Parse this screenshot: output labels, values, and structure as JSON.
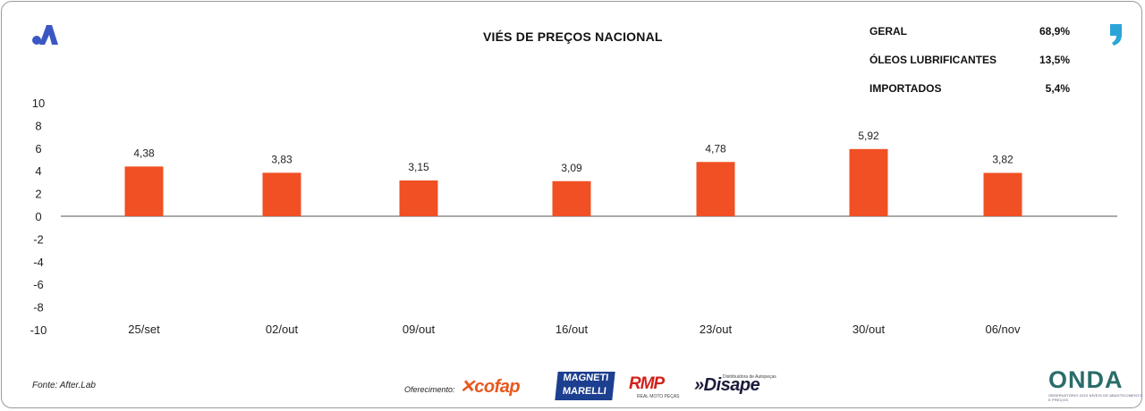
{
  "header": {
    "title": "VIÉS DE PREÇOS NACIONAL"
  },
  "icons": {
    "brand": "letter-a-logo-icon",
    "quote": "quote-mark-icon"
  },
  "stats": [
    {
      "label": "GERAL",
      "value": "68,9%"
    },
    {
      "label": "ÓLEOS LUBRIFICANTES",
      "value": "13,5%"
    },
    {
      "label": "IMPORTADOS",
      "value": "5,4%"
    }
  ],
  "chart_data": {
    "type": "bar",
    "title": "VIÉS DE PREÇOS NACIONAL",
    "categories": [
      "25/set",
      "02/out",
      "09/out",
      "16/out",
      "23/out",
      "30/out",
      "06/nov"
    ],
    "values": [
      4.38,
      3.83,
      3.15,
      3.09,
      4.78,
      5.92,
      3.82
    ],
    "data_labels": [
      "4,38",
      "3,83",
      "3,15",
      "3,09",
      "4,78",
      "5,92",
      "3,82"
    ],
    "ylim": [
      -10,
      10
    ],
    "yticks": [
      10,
      8,
      6,
      4,
      2,
      0,
      -2,
      -4,
      -6,
      -8,
      -10
    ],
    "bar_color": "#f05023",
    "grid": false
  },
  "footer": {
    "source": "Fonte: After.Lab",
    "sponsor_label": "Oferecimento:",
    "sponsors": {
      "cofap": "cofap",
      "magneti_line1": "MAGNETI",
      "magneti_line2": "MARELLI",
      "rmp": "RMP",
      "rmp_sub": "REAL MOTO PEÇAS",
      "disape": "»Disape",
      "disape_sub": "Distribuidora de Autopeças",
      "onda": "ONDA",
      "onda_sub": "OBSERVATÓRIO DOS NÍVEIS DE ABASTECIMENTO E PREÇOS"
    }
  }
}
